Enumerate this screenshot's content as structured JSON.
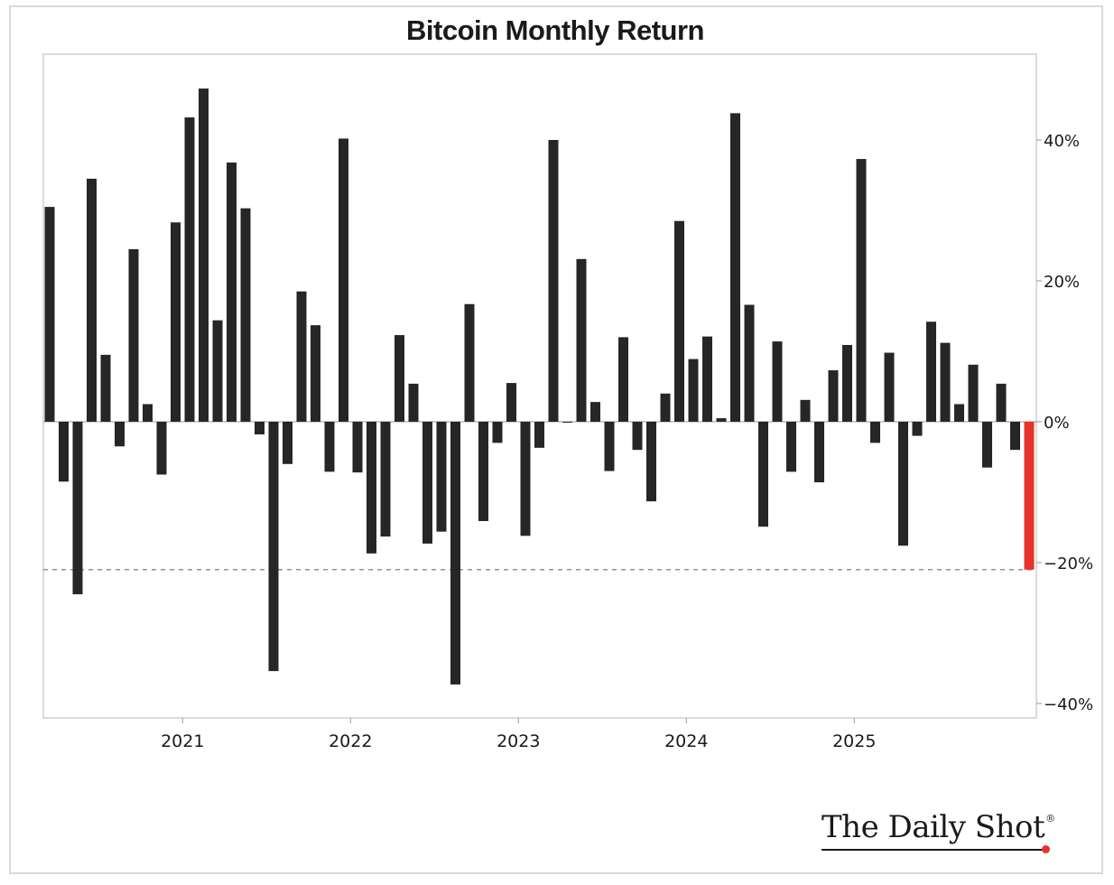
{
  "chart_data": {
    "type": "bar",
    "title": "Bitcoin Monthly Return",
    "xlabel": "",
    "ylabel": "",
    "ylim": [
      -42,
      52
    ],
    "y_ticks": [
      40,
      20,
      0,
      -20,
      -40
    ],
    "y_tick_labels": [
      "40%",
      "20%",
      "0%",
      "−20%",
      "−40%"
    ],
    "x_tick_labels": [
      "2021",
      "2022",
      "2023",
      "2024",
      "2025"
    ],
    "reference_line": {
      "value": -21,
      "style": "dashed",
      "color": "#888888"
    },
    "bar_color": "#262626",
    "highlight_color": "#e8322a",
    "highlight_last": true,
    "start_month": "2020-03",
    "values": [
      30.5,
      -8.5,
      -24.5,
      34.5,
      9.5,
      -3.5,
      24.5,
      2.5,
      -7.5,
      28.3,
      43.2,
      47.3,
      14.4,
      36.8,
      30.3,
      -1.8,
      -35.4,
      -6.0,
      18.5,
      13.7,
      -7.1,
      40.2,
      -7.2,
      -18.7,
      -16.3,
      12.3,
      5.4,
      -17.3,
      -15.6,
      -37.3,
      16.7,
      -14.1,
      -3.0,
      5.5,
      -16.2,
      -3.7,
      40.0,
      0.0,
      23.1,
      2.8,
      -7.0,
      12.0,
      -4.0,
      -11.3,
      4.0,
      28.5,
      8.9,
      12.1,
      0.5,
      43.8,
      16.6,
      -14.9,
      11.4,
      -7.1,
      3.1,
      -8.6,
      7.3,
      10.9,
      37.3,
      -3.0,
      9.8,
      -17.6,
      -2.0,
      14.2,
      11.2,
      2.5,
      8.1,
      -6.5,
      5.4,
      -4.0,
      -21.0
    ]
  },
  "branding": {
    "logo_text": "The Daily Shot",
    "registered_mark": "®"
  }
}
